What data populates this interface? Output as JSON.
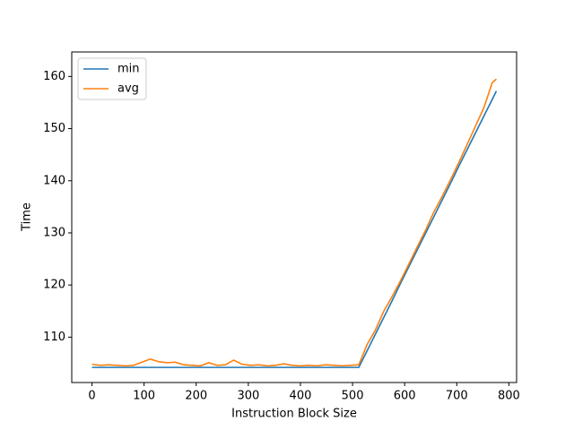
{
  "chart_data": {
    "type": "line",
    "x_label": "Instruction Block Size",
    "y_label": "Time",
    "x": [
      0,
      16,
      32,
      48,
      64,
      80,
      96,
      112,
      128,
      144,
      160,
      176,
      192,
      208,
      224,
      240,
      256,
      272,
      288,
      304,
      320,
      336,
      352,
      368,
      384,
      400,
      416,
      432,
      448,
      464,
      480,
      496,
      512,
      528,
      544,
      560,
      576,
      592,
      608,
      624,
      640,
      656,
      672,
      688,
      704,
      720,
      736,
      752,
      768,
      776
    ],
    "series": [
      {
        "name": "min",
        "color": "#1f77b4",
        "values": [
          104.2,
          104.2,
          104.2,
          104.2,
          104.2,
          104.2,
          104.2,
          104.2,
          104.2,
          104.2,
          104.2,
          104.2,
          104.2,
          104.2,
          104.2,
          104.2,
          104.2,
          104.2,
          104.2,
          104.2,
          104.2,
          104.2,
          104.2,
          104.2,
          104.2,
          104.2,
          104.2,
          104.2,
          104.2,
          104.2,
          104.2,
          104.2,
          104.2,
          107.4,
          110.6,
          113.8,
          117.0,
          120.3,
          123.5,
          126.7,
          129.9,
          133.1,
          136.3,
          139.5,
          142.8,
          146.0,
          149.2,
          152.4,
          155.6,
          157.2
        ]
      },
      {
        "name": "avg",
        "color": "#ff7f0e",
        "values": [
          104.8,
          104.6,
          104.7,
          104.6,
          104.5,
          104.6,
          105.2,
          105.8,
          105.3,
          105.1,
          105.2,
          104.7,
          104.6,
          104.5,
          105.1,
          104.6,
          104.7,
          105.6,
          104.8,
          104.6,
          104.7,
          104.5,
          104.6,
          104.9,
          104.6,
          104.5,
          104.6,
          104.5,
          104.7,
          104.6,
          104.5,
          104.6,
          104.7,
          108.6,
          111.4,
          115.0,
          117.8,
          120.8,
          124.0,
          127.3,
          130.5,
          134.0,
          137.0,
          140.2,
          143.5,
          147.0,
          150.5,
          154.0,
          158.8,
          159.5
        ]
      }
    ],
    "xlim": [
      -38.8,
      814.8
    ],
    "ylim": [
      101.3,
      164.7
    ],
    "xticks": [
      0,
      100,
      200,
      300,
      400,
      500,
      600,
      700,
      800
    ],
    "yticks": [
      110,
      120,
      130,
      140,
      150,
      160
    ],
    "legend": "upper left"
  }
}
